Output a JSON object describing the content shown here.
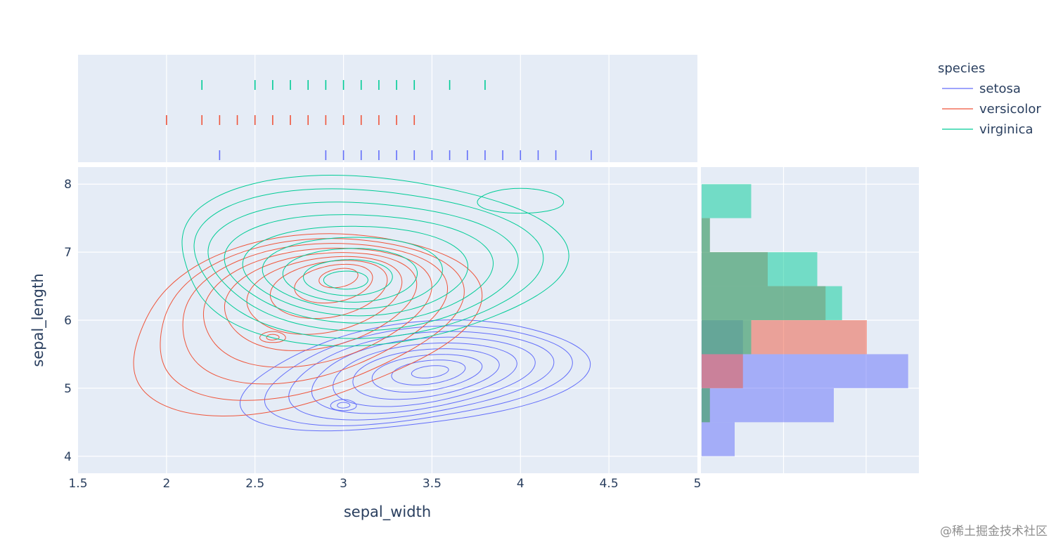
{
  "chart_data": {
    "type": "scatter",
    "subtype": "joint density contour with rug marginal (x) and histogram marginal (y)",
    "xlabel": "sepal_width",
    "ylabel": "sepal_length",
    "xlim": [
      1.5,
      5
    ],
    "ylim": [
      3.75,
      8.25
    ],
    "xticks": [
      "1.5",
      "2",
      "2.5",
      "3",
      "3.5",
      "4",
      "4.5",
      "5"
    ],
    "yticks": [
      "4",
      "5",
      "6",
      "7",
      "8"
    ],
    "grid": true,
    "legend": {
      "title": "species",
      "placement": "top-right outside"
    },
    "series": [
      {
        "name": "setosa",
        "color": "#636efa",
        "rug_x": [
          2.3,
          2.9,
          3.0,
          3.1,
          3.2,
          3.3,
          3.4,
          3.5,
          3.6,
          3.7,
          3.8,
          3.9,
          4.0,
          4.1,
          4.2,
          4.4
        ],
        "density_peaks": [
          {
            "x": 3.5,
            "y": 5.25
          },
          {
            "x": 3.0,
            "y": 4.75
          }
        ],
        "density_extent": {
          "x": [
            2.45,
            4.35
          ],
          "y": [
            4.4,
            5.95
          ]
        },
        "hist_y": [
          {
            "bin": [
              4,
              4.5
            ],
            "count": 4
          },
          {
            "bin": [
              4.5,
              5
            ],
            "count": 16
          },
          {
            "bin": [
              5,
              5.5
            ],
            "count": 25
          },
          {
            "bin": [
              5.5,
              6
            ],
            "count": 5
          }
        ]
      },
      {
        "name": "versicolor",
        "color": "#EF553B",
        "rug_x": [
          2.0,
          2.2,
          2.3,
          2.4,
          2.5,
          2.6,
          2.7,
          2.8,
          2.9,
          3.0,
          3.1,
          3.2,
          3.3,
          3.4
        ],
        "density_peaks": [
          {
            "x": 3.0,
            "y": 6.7
          },
          {
            "x": 2.6,
            "y": 5.75
          }
        ],
        "density_extent": {
          "x": [
            1.75,
            3.75
          ],
          "y": [
            4.75,
            7.2
          ]
        },
        "hist_y": [
          {
            "bin": [
              4.5,
              5
            ],
            "count": 1
          },
          {
            "bin": [
              5,
              5.5
            ],
            "count": 5
          },
          {
            "bin": [
              5.5,
              6
            ],
            "count": 20
          },
          {
            "bin": [
              6,
              6.5
            ],
            "count": 15
          },
          {
            "bin": [
              6.5,
              7
            ],
            "count": 8
          },
          {
            "bin": [
              7,
              7.5
            ],
            "count": 1
          }
        ]
      },
      {
        "name": "virginica",
        "color": "#00cc96",
        "rug_x": [
          2.2,
          2.5,
          2.6,
          2.7,
          2.8,
          2.9,
          3.0,
          3.1,
          3.2,
          3.3,
          3.4,
          3.6,
          3.8
        ],
        "density_peaks": [
          {
            "x": 3.0,
            "y": 6.55
          },
          {
            "x": 4.0,
            "y": 7.75
          }
        ],
        "density_extent": {
          "x": [
            2.0,
            4.25
          ],
          "y": [
            5.7,
            8.1
          ]
        },
        "hist_y": [
          {
            "bin": [
              4.5,
              5
            ],
            "count": 1
          },
          {
            "bin": [
              5.5,
              6
            ],
            "count": 6
          },
          {
            "bin": [
              6,
              6.5
            ],
            "count": 17
          },
          {
            "bin": [
              6.5,
              7
            ],
            "count": 14
          },
          {
            "bin": [
              7,
              7.5
            ],
            "count": 1
          },
          {
            "bin": [
              7.5,
              8
            ],
            "count": 6
          }
        ]
      }
    ]
  },
  "watermark": "@稀土掘金技术社区"
}
